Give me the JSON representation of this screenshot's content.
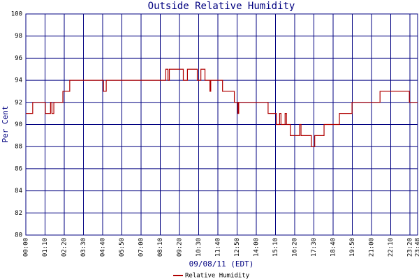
{
  "chart_data": {
    "type": "line",
    "title": "Outside Relative Humidity",
    "x_label": "09/08/11 (EDT)",
    "y_label": "Per Cent",
    "xlim": [
      0,
      1428
    ],
    "ylim": [
      80,
      100
    ],
    "xticks": [
      {
        "value": 0,
        "label": "00:00"
      },
      {
        "value": 70,
        "label": "01:10"
      },
      {
        "value": 140,
        "label": "02:20"
      },
      {
        "value": 210,
        "label": "03:30"
      },
      {
        "value": 280,
        "label": "04:40"
      },
      {
        "value": 350,
        "label": "05:50"
      },
      {
        "value": 420,
        "label": "07:00"
      },
      {
        "value": 490,
        "label": "08:10"
      },
      {
        "value": 560,
        "label": "09:20"
      },
      {
        "value": 630,
        "label": "10:30"
      },
      {
        "value": 700,
        "label": "11:40"
      },
      {
        "value": 770,
        "label": "12:50"
      },
      {
        "value": 840,
        "label": "14:00"
      },
      {
        "value": 910,
        "label": "15:10"
      },
      {
        "value": 980,
        "label": "16:20"
      },
      {
        "value": 1050,
        "label": "17:30"
      },
      {
        "value": 1120,
        "label": "18:40"
      },
      {
        "value": 1190,
        "label": "19:50"
      },
      {
        "value": 1260,
        "label": "21:00"
      },
      {
        "value": 1330,
        "label": "22:10"
      },
      {
        "value": 1400,
        "label": "23:20"
      },
      {
        "value": 1428,
        "label": "23:48"
      }
    ],
    "yticks": [
      80,
      82,
      84,
      86,
      88,
      90,
      92,
      94,
      96,
      98,
      100
    ],
    "grid": true,
    "grid_color": "#000080",
    "x": [
      0,
      25,
      25,
      71,
      71,
      90,
      90,
      95,
      95,
      102,
      102,
      135,
      135,
      160,
      160,
      283,
      283,
      293,
      293,
      510,
      510,
      518,
      518,
      523,
      523,
      574,
      574,
      589,
      589,
      625,
      625,
      638,
      638,
      653,
      653,
      671,
      671,
      674,
      674,
      717,
      717,
      760,
      760,
      773,
      773,
      776,
      776,
      883,
      883,
      913,
      913,
      925,
      925,
      930,
      930,
      945,
      945,
      950,
      950,
      964,
      964,
      998,
      998,
      1003,
      1003,
      1041,
      1041,
      1053,
      1053,
      1087,
      1087,
      1143,
      1143,
      1189,
      1189,
      1291,
      1291,
      1398,
      1398,
      1428
    ],
    "series": [
      {
        "name": "Relative Humidity",
        "color": "#b00000",
        "values": [
          91,
          91,
          92,
          92,
          91,
          91,
          92,
          92,
          91,
          91,
          92,
          92,
          93,
          93,
          94,
          94,
          93,
          93,
          94,
          94,
          95,
          95,
          94,
          94,
          95,
          95,
          94,
          94,
          95,
          95,
          94,
          94,
          95,
          95,
          94,
          94,
          93,
          93,
          94,
          94,
          93,
          93,
          92,
          92,
          91,
          91,
          92,
          92,
          91,
          91,
          90,
          90,
          91,
          91,
          90,
          90,
          91,
          91,
          90,
          90,
          89,
          89,
          90,
          90,
          89,
          89,
          88,
          88,
          89,
          89,
          90,
          90,
          91,
          91,
          92,
          92,
          93,
          93,
          92,
          92
        ]
      }
    ]
  }
}
